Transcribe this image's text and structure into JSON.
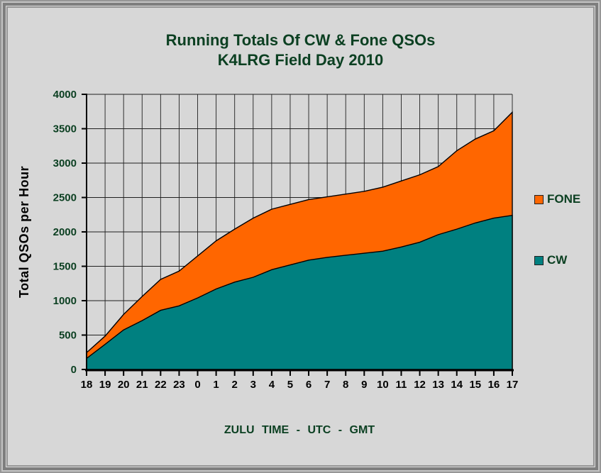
{
  "header": {
    "line1": "Running Totals Of CW & Fone QSOs",
    "line2": "K4LRG Field Day 2010"
  },
  "colors": {
    "background": "#d7d7d7",
    "text_green": "#0c4022",
    "text_black": "#000000",
    "gridline": "#1f1f1f",
    "cw_teal": "#008080",
    "fone_orange": "#ff6600"
  },
  "chart_data": {
    "type": "area",
    "stacked": true,
    "title": "Running Totals Of CW & Fone QSOs — K4LRG Field Day 2010",
    "xlabel": "ZULU TIME - UTC - GMT",
    "ylabel": "Total QSOs per Hour",
    "x": [
      "18",
      "19",
      "20",
      "21",
      "22",
      "23",
      "0",
      "1",
      "2",
      "3",
      "4",
      "5",
      "6",
      "7",
      "8",
      "9",
      "10",
      "11",
      "12",
      "13",
      "14",
      "15",
      "16",
      "17"
    ],
    "series": [
      {
        "name": "CW",
        "color": "#008080",
        "values": [
          160,
          365,
          575,
          710,
          860,
          925,
          1040,
          1170,
          1270,
          1340,
          1450,
          1520,
          1590,
          1630,
          1660,
          1690,
          1720,
          1780,
          1850,
          1960,
          2040,
          2130,
          2200,
          2240
        ]
      },
      {
        "name": "FONE",
        "color": "#ff6600",
        "values": [
          85,
          120,
          225,
          350,
          450,
          505,
          610,
          700,
          770,
          860,
          880,
          880,
          880,
          880,
          890,
          900,
          930,
          960,
          980,
          990,
          1140,
          1220,
          1270,
          1500
        ]
      }
    ],
    "stacked_totals": [
      245,
      485,
      800,
      1060,
      1310,
      1430,
      1650,
      1870,
      2040,
      2200,
      2330,
      2400,
      2470,
      2510,
      2550,
      2590,
      2650,
      2740,
      2830,
      2950,
      3180,
      3350,
      3470,
      3740
    ],
    "ylim": [
      0,
      4000
    ],
    "y_tick_step": 500,
    "y_tick_labels": [
      "0",
      "500",
      "1000",
      "1500",
      "2000",
      "2500",
      "3000",
      "3500",
      "4000"
    ],
    "grid": true,
    "legend_position": "right"
  }
}
